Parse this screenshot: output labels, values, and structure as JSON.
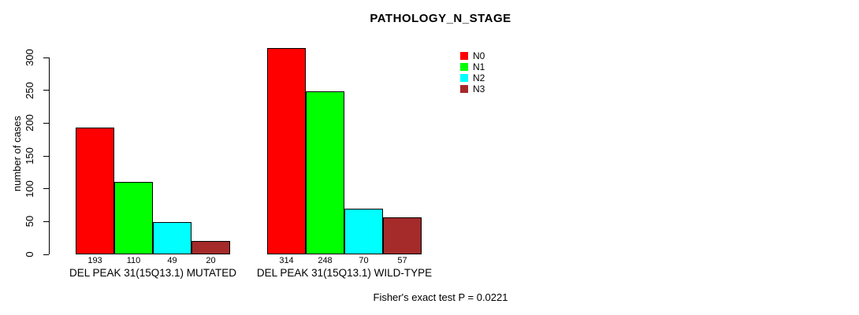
{
  "figure": {
    "background": "#ffffff"
  },
  "chart_data": {
    "type": "bar",
    "title": "PATHOLOGY_N_STAGE",
    "ylabel": "number of cases",
    "xlabel": "",
    "ylim": [
      0,
      300
    ],
    "yticks": [
      0,
      50,
      100,
      150,
      200,
      250,
      300
    ],
    "grid": false,
    "legend_position": "top-right",
    "categories": [
      "DEL PEAK 31(15Q13.1) MUTATED",
      "DEL PEAK 31(15Q13.1) WILD-TYPE"
    ],
    "series": [
      {
        "name": "N0",
        "color": "#ff0000",
        "values": [
          193,
          314
        ]
      },
      {
        "name": "N1",
        "color": "#00ff00",
        "values": [
          110,
          248
        ]
      },
      {
        "name": "N2",
        "color": "#00ffff",
        "values": [
          49,
          70
        ]
      },
      {
        "name": "N3",
        "color": "#a52a2a",
        "values": [
          20,
          57
        ]
      }
    ],
    "bar_value_labels": [
      [
        "193",
        "110",
        "49",
        "20"
      ],
      [
        "314",
        "248",
        "70",
        "57"
      ]
    ],
    "annotation": "Fisher's exact test P = 0.0221"
  }
}
